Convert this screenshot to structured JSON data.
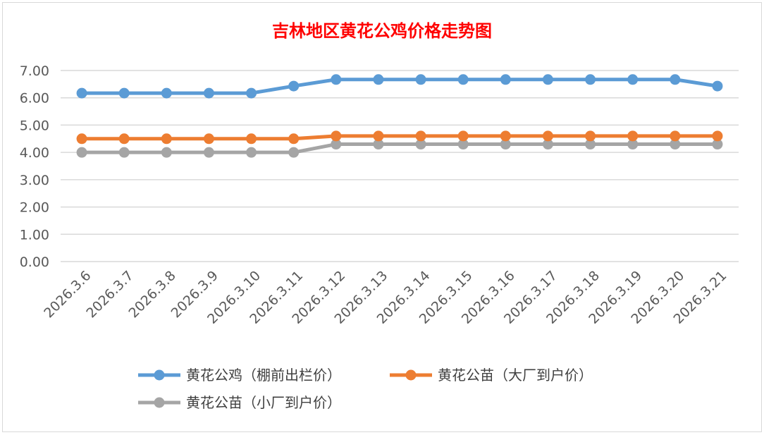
{
  "chart_data": {
    "type": "line",
    "title": "吉林地区黄花公鸡价格走势图",
    "xlabel": "",
    "ylabel": "",
    "ylim": [
      0,
      7
    ],
    "yticks": [
      "0.00",
      "1.00",
      "2.00",
      "3.00",
      "4.00",
      "5.00",
      "6.00",
      "7.00"
    ],
    "grid": true,
    "legend_position": "bottom",
    "categories": [
      "2026.3.6",
      "2026.3.7",
      "2026.3.8",
      "2026.3.9",
      "2026.3.10",
      "2026.3.11",
      "2026.3.12",
      "2026.3.13",
      "2026.3.14",
      "2026.3.15",
      "2026.3.16",
      "2026.3.17",
      "2026.3.18",
      "2026.3.19",
      "2026.3.20",
      "2026.3.21"
    ],
    "series": [
      {
        "name": "黄花公鸡（棚前出栏价）",
        "color": "#5b9bd5",
        "values": [
          6.17,
          6.17,
          6.17,
          6.17,
          6.17,
          6.43,
          6.67,
          6.67,
          6.67,
          6.67,
          6.67,
          6.67,
          6.67,
          6.67,
          6.67,
          6.43
        ]
      },
      {
        "name": "黄花公苗（大厂到户价）",
        "color": "#ed7d31",
        "values": [
          4.5,
          4.5,
          4.5,
          4.5,
          4.5,
          4.5,
          4.6,
          4.6,
          4.6,
          4.6,
          4.6,
          4.6,
          4.6,
          4.6,
          4.6,
          4.6
        ]
      },
      {
        "name": "黄花公苗（小厂到户价）",
        "color": "#a5a5a5",
        "values": [
          4.0,
          4.0,
          4.0,
          4.0,
          4.0,
          4.0,
          4.3,
          4.3,
          4.3,
          4.3,
          4.3,
          4.3,
          4.3,
          4.3,
          4.3,
          4.3
        ]
      }
    ]
  }
}
